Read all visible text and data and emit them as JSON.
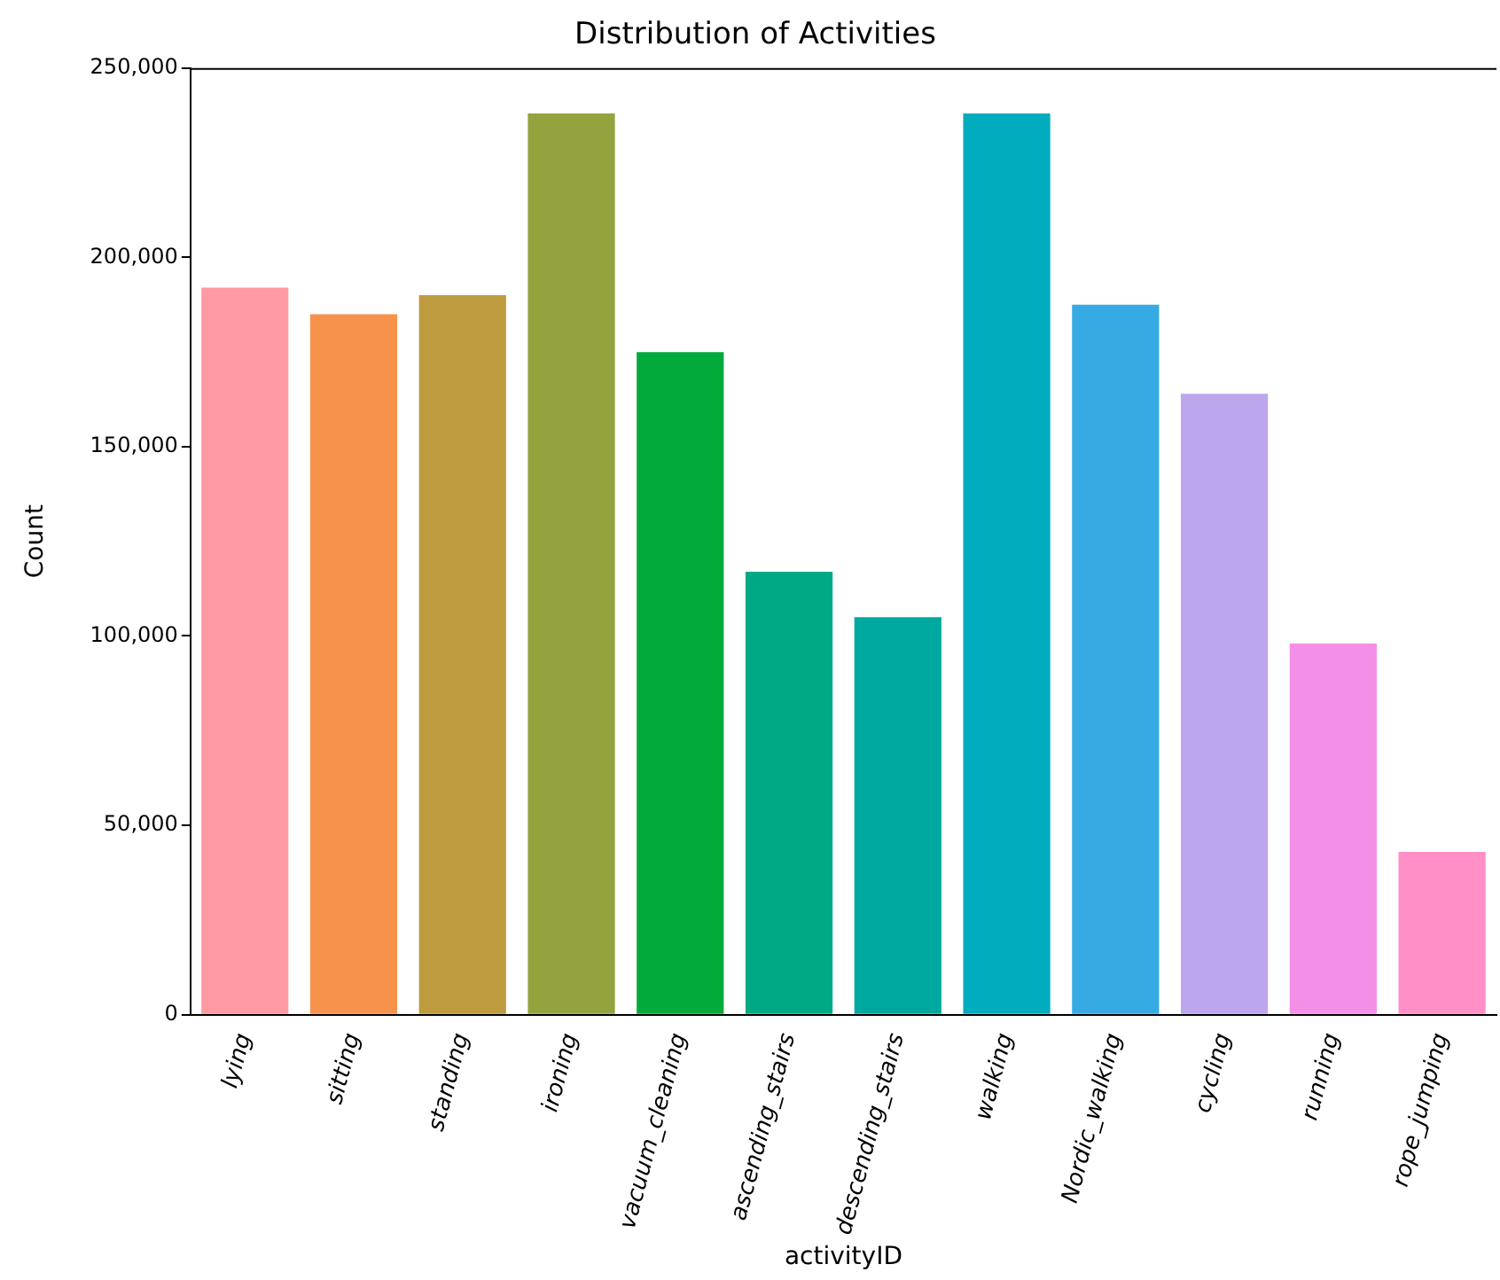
{
  "chart_data": {
    "type": "bar",
    "title": "Distribution of Activities",
    "xlabel": "activityID",
    "ylabel": "Count",
    "categories": [
      "lying",
      "sitting",
      "standing",
      "ironing",
      "vacuum_cleaning",
      "ascending_stairs",
      "descending_stairs",
      "walking",
      "Nordic_walking",
      "cycling",
      "running",
      "rope_jumping"
    ],
    "values": [
      192000,
      185000,
      190000,
      238000,
      175000,
      117000,
      105000,
      238000,
      187500,
      164000,
      98000,
      43000
    ],
    "colors": [
      "#ff9aa2",
      "#f7924d",
      "#bf9b3f",
      "#94a33e",
      "#02aa3a",
      "#00a985",
      "#00a9a0",
      "#00acbe",
      "#36abe3",
      "#bca7ec",
      "#f48fe8",
      "#ff8fc6"
    ],
    "ylim": [
      0,
      250000
    ],
    "yticks": [
      {
        "value": 0,
        "label": "0"
      },
      {
        "value": 50000,
        "label": "50,000"
      },
      {
        "value": 100000,
        "label": "100,000"
      },
      {
        "value": 150000,
        "label": "150,000"
      },
      {
        "value": 200000,
        "label": "200,000"
      },
      {
        "value": 250000,
        "label": "250,000"
      }
    ],
    "grid": false,
    "legend": false
  }
}
